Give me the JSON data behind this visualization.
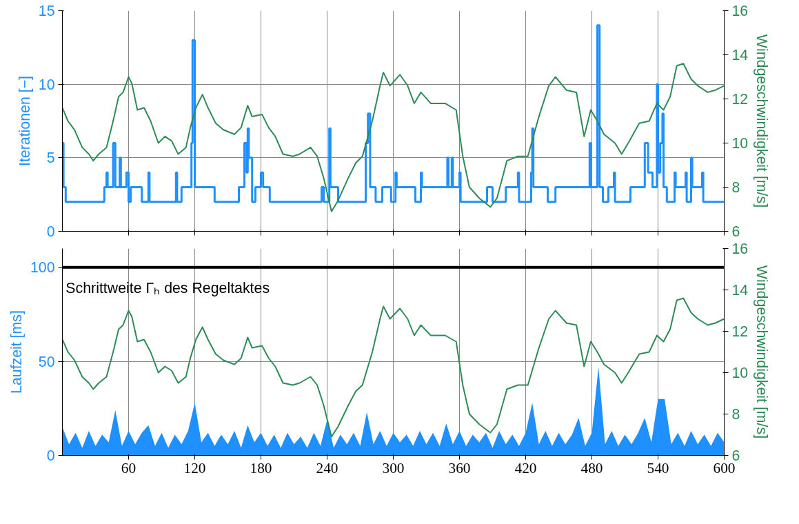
{
  "chart_data": [
    {
      "type": "step",
      "ylabel": "Iterationen [−]",
      "y2label": "Windgeschwindigkeit [m/s]",
      "xlim": [
        0,
        600
      ],
      "xticks": [
        60,
        120,
        180,
        240,
        300,
        360,
        420,
        480,
        540,
        600
      ],
      "ylim": [
        0,
        15
      ],
      "yticks": [
        0,
        5,
        10,
        15
      ],
      "y2lim": [
        6,
        16
      ],
      "y2ticks": [
        6,
        8,
        10,
        12,
        14,
        16
      ],
      "grid": true,
      "tick_labels": "y",
      "series": [
        {
          "color": "#1e90ff",
          "x": [
            0,
            1,
            3,
            38,
            40,
            41,
            46,
            48,
            52,
            53,
            58,
            60,
            62,
            72,
            78,
            79,
            103,
            104,
            108,
            117,
            118,
            120,
            138,
            160,
            165,
            167,
            168,
            169,
            172,
            175,
            180,
            182,
            188,
            235,
            237,
            242,
            243,
            250,
            275,
            277,
            279,
            284,
            290,
            298,
            302,
            303,
            320,
            325,
            326,
            349,
            350,
            353,
            354,
            360,
            361,
            385,
            390,
            402,
            413,
            414,
            425,
            426,
            427,
            440,
            447,
            478,
            479,
            485,
            487,
            490,
            495,
            500,
            501,
            515,
            528,
            531,
            535,
            539,
            540,
            542,
            544,
            545,
            548,
            555,
            556,
            565,
            566,
            570,
            571,
            580,
            581,
            600
          ],
          "values": [
            6,
            3,
            2,
            3,
            4,
            3,
            6,
            3,
            5,
            3,
            4,
            2,
            3,
            2,
            4,
            2,
            4,
            2,
            3,
            6,
            13,
            3,
            2,
            3,
            6,
            4,
            7,
            5,
            2,
            3,
            4,
            3,
            2,
            3,
            2,
            7,
            3,
            2,
            6,
            8,
            3,
            2,
            3,
            2,
            4,
            3,
            2,
            4,
            3,
            5,
            3,
            5,
            3,
            4,
            2,
            3,
            2,
            3,
            4,
            2,
            4,
            7,
            3,
            2,
            3,
            6,
            3,
            14,
            3,
            2,
            3,
            4,
            2,
            3,
            6,
            4,
            3,
            10,
            4,
            6,
            8,
            3,
            2,
            4,
            3,
            4,
            2,
            5,
            3,
            4,
            2,
            2
          ]
        },
        {
          "type": "line",
          "axis": "y2",
          "color": "#2e8b57",
          "x": [
            0,
            5,
            11,
            18,
            24,
            28,
            33,
            40,
            46,
            51,
            55,
            60,
            63,
            68,
            74,
            80,
            87,
            93,
            99,
            105,
            112,
            116,
            121,
            127,
            132,
            139,
            146,
            156,
            162,
            168,
            172,
            181,
            187,
            193,
            200,
            209,
            215,
            225,
            231,
            237,
            244,
            250,
            259,
            266,
            272,
            281,
            288,
            291,
            297,
            306,
            313,
            319,
            325,
            334,
            347,
            357,
            363,
            369,
            378,
            388,
            394,
            403,
            413,
            422,
            432,
            441,
            447,
            457,
            466,
            473,
            479,
            485,
            491,
            501,
            507,
            513,
            523,
            532,
            539,
            545,
            551,
            557,
            563,
            570,
            576,
            585,
            592,
            600
          ],
          "values": [
            11.6,
            11.0,
            10.6,
            9.8,
            9.5,
            9.2,
            9.5,
            9.8,
            11.0,
            12.1,
            12.3,
            13.0,
            12.7,
            11.5,
            11.6,
            11.0,
            10.0,
            10.3,
            10.1,
            9.5,
            9.8,
            10.7,
            11.6,
            12.2,
            11.6,
            10.9,
            10.6,
            10.4,
            10.7,
            11.7,
            11.2,
            11.3,
            10.7,
            10.3,
            9.5,
            9.4,
            9.5,
            9.8,
            9.4,
            8.4,
            6.9,
            7.4,
            8.4,
            9.1,
            9.4,
            11.0,
            12.6,
            13.2,
            12.6,
            13.1,
            12.6,
            11.8,
            12.3,
            11.8,
            11.8,
            11.5,
            9.4,
            8.0,
            7.5,
            7.1,
            7.5,
            9.2,
            9.4,
            9.4,
            11.2,
            12.6,
            13.0,
            12.4,
            12.3,
            10.3,
            11.5,
            11.0,
            10.4,
            10.0,
            9.5,
            10.0,
            10.9,
            11.0,
            11.8,
            11.5,
            12.1,
            13.5,
            13.6,
            12.9,
            12.6,
            12.3,
            12.4,
            12.6
          ]
        }
      ]
    },
    {
      "type": "area",
      "ylabel": "Laufzeit [ms]",
      "y2label": "Windgeschwindigkeit [m/s]",
      "xlim": [
        0,
        600
      ],
      "xticks": [
        60,
        120,
        180,
        240,
        300,
        360,
        420,
        480,
        540,
        600
      ],
      "ylim": [
        0,
        110
      ],
      "yticks": [
        0,
        50,
        100
      ],
      "y2lim": [
        6,
        16
      ],
      "y2ticks": [
        6,
        8,
        10,
        12,
        14,
        16
      ],
      "grid": true,
      "ref_lines": [
        {
          "axis": "y",
          "value": 100,
          "label": "Schrittweite Γₕ des Regeltaktes",
          "color": "#000000"
        }
      ],
      "series": [
        {
          "color": "#1e90ff",
          "x": [
            0,
            6,
            12,
            18,
            24,
            30,
            36,
            42,
            48,
            54,
            60,
            66,
            72,
            78,
            84,
            90,
            96,
            102,
            108,
            114,
            120,
            126,
            132,
            138,
            144,
            150,
            156,
            162,
            168,
            174,
            180,
            186,
            192,
            198,
            204,
            210,
            216,
            222,
            228,
            234,
            240,
            246,
            252,
            258,
            264,
            270,
            276,
            282,
            288,
            294,
            300,
            306,
            312,
            318,
            324,
            330,
            336,
            342,
            348,
            354,
            360,
            366,
            372,
            378,
            384,
            390,
            396,
            402,
            408,
            414,
            420,
            426,
            432,
            438,
            444,
            450,
            456,
            462,
            468,
            474,
            480,
            486,
            492,
            498,
            504,
            510,
            516,
            522,
            528,
            534,
            540,
            546,
            552,
            558,
            564,
            570,
            576,
            582,
            588,
            594,
            600
          ],
          "values": [
            15,
            6,
            12,
            4,
            13,
            5,
            11,
            7,
            24,
            5,
            13,
            6,
            12,
            16,
            5,
            12,
            4,
            11,
            6,
            13,
            28,
            7,
            12,
            5,
            11,
            6,
            13,
            4,
            16,
            7,
            12,
            5,
            11,
            4,
            12,
            6,
            10,
            4,
            12,
            5,
            19,
            4,
            11,
            6,
            12,
            5,
            23,
            6,
            13,
            5,
            12,
            7,
            11,
            5,
            13,
            6,
            12,
            5,
            17,
            6,
            13,
            5,
            11,
            7,
            12,
            4,
            13,
            6,
            11,
            5,
            12,
            28,
            6,
            13,
            5,
            12,
            6,
            11,
            20,
            5,
            12,
            47,
            6,
            13,
            5,
            11,
            6,
            12,
            20,
            7,
            30,
            30,
            6,
            12,
            5,
            13,
            6,
            11,
            5,
            12,
            7
          ]
        },
        {
          "type": "line",
          "axis": "y2",
          "color": "#2e8b57",
          "x": [
            0,
            5,
            11,
            18,
            24,
            28,
            33,
            40,
            46,
            51,
            55,
            60,
            63,
            68,
            74,
            80,
            87,
            93,
            99,
            105,
            112,
            116,
            121,
            127,
            132,
            139,
            146,
            156,
            162,
            168,
            172,
            181,
            187,
            193,
            200,
            209,
            215,
            225,
            231,
            237,
            244,
            250,
            259,
            266,
            272,
            281,
            288,
            291,
            297,
            306,
            313,
            319,
            325,
            334,
            347,
            357,
            363,
            369,
            378,
            388,
            394,
            403,
            413,
            422,
            432,
            441,
            447,
            457,
            466,
            473,
            479,
            485,
            491,
            501,
            507,
            513,
            523,
            532,
            539,
            545,
            551,
            557,
            563,
            570,
            576,
            585,
            592,
            600
          ],
          "values": [
            11.6,
            11.0,
            10.6,
            9.8,
            9.5,
            9.2,
            9.5,
            9.8,
            11.0,
            12.1,
            12.3,
            13.0,
            12.7,
            11.5,
            11.6,
            11.0,
            10.0,
            10.3,
            10.1,
            9.5,
            9.8,
            10.7,
            11.6,
            12.2,
            11.6,
            10.9,
            10.6,
            10.4,
            10.7,
            11.7,
            11.2,
            11.3,
            10.7,
            10.3,
            9.5,
            9.4,
            9.5,
            9.8,
            9.4,
            8.4,
            6.9,
            7.4,
            8.4,
            9.1,
            9.4,
            11.0,
            12.6,
            13.2,
            12.6,
            13.1,
            12.6,
            11.8,
            12.3,
            11.8,
            11.8,
            11.5,
            9.4,
            8.0,
            7.5,
            7.1,
            7.5,
            9.2,
            9.4,
            9.4,
            11.2,
            12.6,
            13.0,
            12.4,
            12.3,
            10.3,
            11.5,
            11.0,
            10.4,
            10.0,
            9.5,
            10.0,
            10.9,
            11.0,
            11.8,
            11.5,
            12.1,
            13.5,
            13.6,
            12.9,
            12.6,
            12.3,
            12.4,
            12.6
          ]
        }
      ]
    }
  ]
}
